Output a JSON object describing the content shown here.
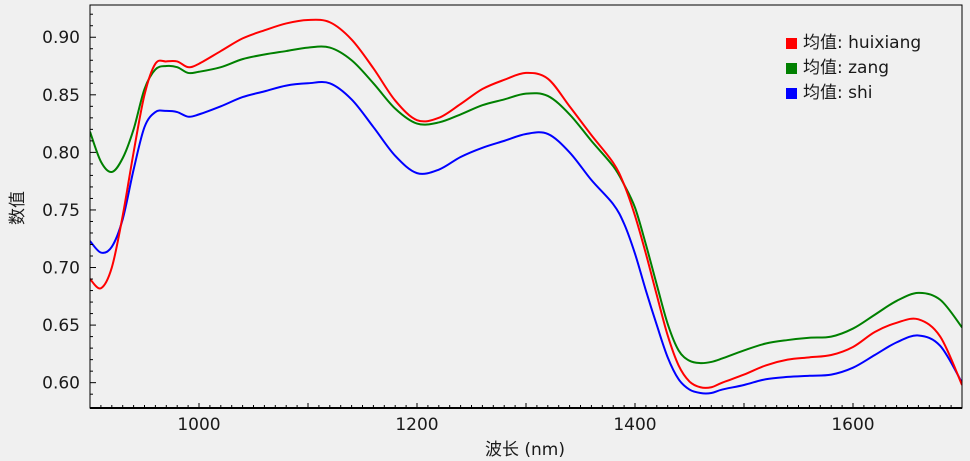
{
  "chart_data": {
    "type": "line",
    "title": "",
    "xlabel": "波长 (nm)",
    "ylabel": "数值",
    "xlim": [
      900,
      1700
    ],
    "ylim": [
      0.578,
      0.928
    ],
    "xticks": [
      1000,
      1200,
      1400,
      1600
    ],
    "yticks": [
      0.6,
      0.65,
      0.7,
      0.75,
      0.8,
      0.85,
      0.9
    ],
    "grid": false,
    "legend_position": "top-right",
    "x": [
      900,
      910,
      920,
      930,
      940,
      950,
      960,
      970,
      980,
      990,
      1000,
      1020,
      1040,
      1060,
      1080,
      1100,
      1120,
      1140,
      1160,
      1180,
      1200,
      1220,
      1240,
      1260,
      1280,
      1300,
      1320,
      1340,
      1360,
      1380,
      1390,
      1400,
      1410,
      1420,
      1430,
      1440,
      1450,
      1460,
      1470,
      1480,
      1500,
      1520,
      1540,
      1560,
      1580,
      1600,
      1620,
      1640,
      1660,
      1680,
      1700
    ],
    "series": [
      {
        "name": "均值: huixiang",
        "color": "#ff0000",
        "values": [
          0.69,
          0.682,
          0.7,
          0.745,
          0.8,
          0.85,
          0.877,
          0.879,
          0.879,
          0.874,
          0.877,
          0.888,
          0.899,
          0.906,
          0.912,
          0.915,
          0.913,
          0.898,
          0.873,
          0.845,
          0.828,
          0.83,
          0.842,
          0.855,
          0.863,
          0.869,
          0.864,
          0.84,
          0.815,
          0.791,
          0.772,
          0.745,
          0.712,
          0.676,
          0.641,
          0.615,
          0.601,
          0.596,
          0.596,
          0.6,
          0.607,
          0.615,
          0.62,
          0.622,
          0.624,
          0.631,
          0.644,
          0.652,
          0.655,
          0.64,
          0.598
        ]
      },
      {
        "name": "均值: zang",
        "color": "#008000",
        "values": [
          0.818,
          0.792,
          0.783,
          0.795,
          0.82,
          0.855,
          0.872,
          0.875,
          0.874,
          0.869,
          0.87,
          0.874,
          0.881,
          0.885,
          0.888,
          0.891,
          0.891,
          0.88,
          0.86,
          0.838,
          0.825,
          0.826,
          0.833,
          0.841,
          0.846,
          0.851,
          0.849,
          0.833,
          0.81,
          0.788,
          0.772,
          0.752,
          0.72,
          0.685,
          0.651,
          0.628,
          0.619,
          0.617,
          0.618,
          0.621,
          0.628,
          0.634,
          0.637,
          0.639,
          0.64,
          0.647,
          0.659,
          0.671,
          0.678,
          0.672,
          0.648
        ]
      },
      {
        "name": "均值: shi",
        "color": "#0000ff",
        "values": [
          0.723,
          0.713,
          0.718,
          0.742,
          0.785,
          0.822,
          0.835,
          0.836,
          0.835,
          0.831,
          0.833,
          0.84,
          0.848,
          0.853,
          0.858,
          0.86,
          0.86,
          0.846,
          0.822,
          0.797,
          0.782,
          0.785,
          0.796,
          0.804,
          0.81,
          0.816,
          0.816,
          0.8,
          0.776,
          0.755,
          0.738,
          0.712,
          0.68,
          0.65,
          0.622,
          0.603,
          0.594,
          0.591,
          0.591,
          0.594,
          0.598,
          0.603,
          0.605,
          0.606,
          0.607,
          0.613,
          0.624,
          0.635,
          0.641,
          0.632,
          0.6
        ]
      }
    ]
  }
}
